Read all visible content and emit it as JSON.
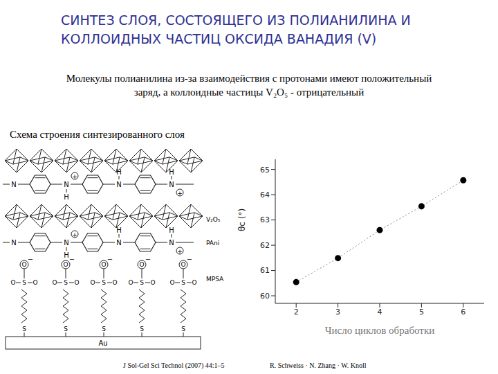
{
  "header": {
    "title_lines": [
      "СИНТЕЗ СЛОЯ, СОСТОЯЩЕГО ИЗ ПОЛИАНИЛИНА И",
      "КОЛЛОИДНЫХ ЧАСТИЦ ОКСИДА ВАНАДИЯ (V)"
    ],
    "subtitle_lines": [
      "Молекулы полианилина из-за взаимодействия с протонами имеют положительный",
      "заряд, а коллоидные частицы V₂O₅ - отрицательный"
    ]
  },
  "scheme": {
    "caption": "Схема строения синтезированного слоя",
    "labels": {
      "oxide": "V₂O₅",
      "polymer": "PAni",
      "thiol": "MPSA",
      "substrate": "Au"
    },
    "atoms": {
      "N": "N",
      "H": "H",
      "O": "O",
      "S": "S",
      "plus": "+",
      "minus": "−"
    }
  },
  "chart_data": {
    "type": "scatter",
    "x": [
      2,
      3,
      4,
      5,
      6
    ],
    "values": [
      60.54,
      61.49,
      62.6,
      63.54,
      64.57
    ],
    "xlim": [
      1.5,
      6.5
    ],
    "ylim": [
      59.7,
      65.4
    ],
    "xticks": [
      2,
      3,
      4,
      5,
      6
    ],
    "yticks": [
      60,
      61,
      62,
      63,
      64,
      65
    ],
    "x_label": "Число циклов обработки",
    "y_label": "θc (°)",
    "color": "#000000",
    "marker": "circle",
    "line_style": "dotted",
    "grid": false
  },
  "citation": {
    "journal": "J Sol-Gel Sci Technol (2007) 44:1–5",
    "authors": "R. Schweiss · N. Zhang · W. Knoll"
  }
}
